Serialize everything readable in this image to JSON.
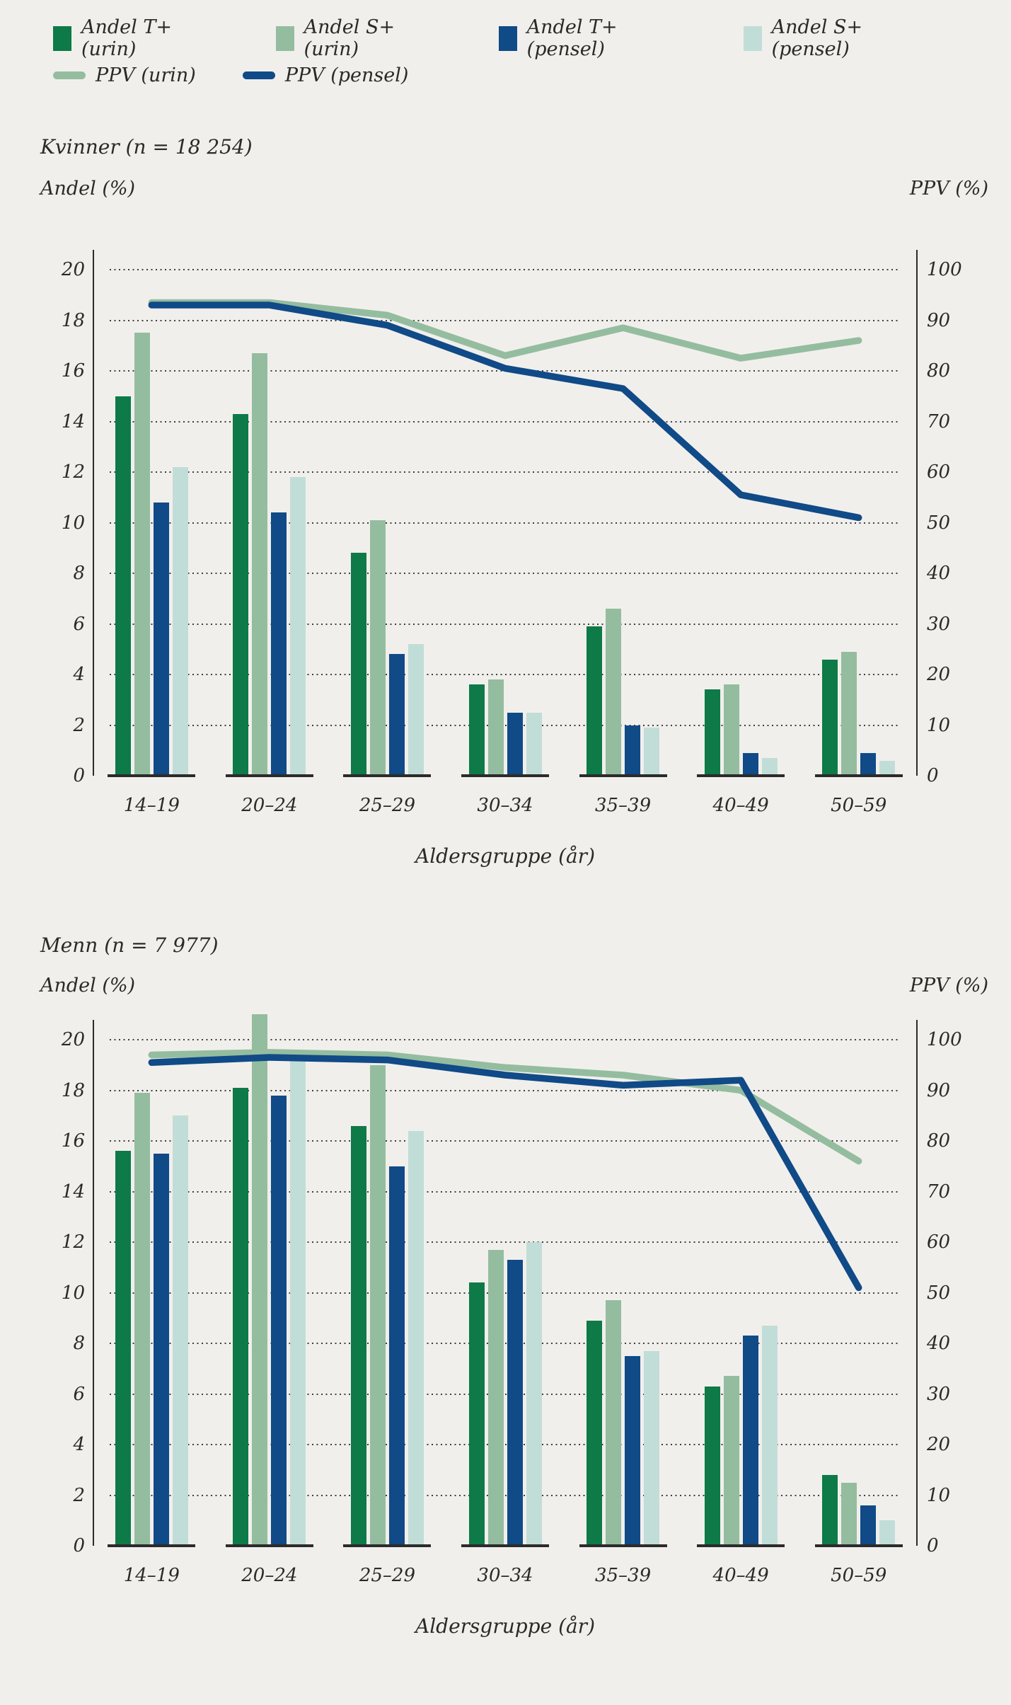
{
  "legend": {
    "bar_series": [
      {
        "label": "Andel T+ (urin)",
        "color": "#0d7a47"
      },
      {
        "label": "Andel S+ (urin)",
        "color": "#94bd9f"
      },
      {
        "label": "Andel T+ (pensel)",
        "color": "#104a87"
      },
      {
        "label": "Andel S+ (pensel)",
        "color": "#c1ddd8"
      }
    ],
    "line_series": [
      {
        "label": "PPV (urin)",
        "color": "#94bd9f"
      },
      {
        "label": "PPV (pensel)",
        "color": "#104a87"
      }
    ]
  },
  "axes": {
    "left_label": "Andel (%)",
    "right_label": "PPV (%)",
    "left_ticks": [
      20,
      18,
      16,
      14,
      12,
      10,
      8,
      6,
      4,
      2
    ],
    "right_ticks": [
      100,
      90,
      80,
      70,
      60,
      50,
      40,
      30,
      20,
      10
    ],
    "zero": "0"
  },
  "x_axis": {
    "title": "Aldersgruppe (år)"
  },
  "chart_data": [
    {
      "type": "bar",
      "title": "Kvinner (n = 18 254)",
      "categories": [
        "14–19",
        "20–24",
        "25–29",
        "30–34",
        "35–39",
        "40–49",
        "50–59"
      ],
      "left_axis": {
        "label": "Andel (%)",
        "range": [
          0,
          20
        ]
      },
      "right_axis": {
        "label": "PPV (%)",
        "range": [
          0,
          100
        ]
      },
      "grid": "dotted horizontal",
      "legend_position": "top",
      "series": [
        {
          "name": "Andel T+ (urin)",
          "type": "bar",
          "axis": "left",
          "color": "#0d7a47",
          "values": [
            15.0,
            14.3,
            8.8,
            3.6,
            5.9,
            3.4,
            4.6
          ]
        },
        {
          "name": "Andel S+ (urin)",
          "type": "bar",
          "axis": "left",
          "color": "#94bd9f",
          "values": [
            17.5,
            16.7,
            10.1,
            3.8,
            6.6,
            3.6,
            4.9
          ]
        },
        {
          "name": "Andel T+ (pensel)",
          "type": "bar",
          "axis": "left",
          "color": "#104a87",
          "values": [
            10.8,
            10.4,
            4.8,
            2.5,
            2.0,
            0.9,
            0.9
          ]
        },
        {
          "name": "Andel S+ (pensel)",
          "type": "bar",
          "axis": "left",
          "color": "#c1ddd8",
          "values": [
            12.2,
            11.8,
            5.2,
            2.5,
            1.9,
            0.7,
            0.6
          ]
        },
        {
          "name": "PPV (urin)",
          "type": "line",
          "axis": "right",
          "color": "#94bd9f",
          "values": [
            93.5,
            93.5,
            91.0,
            83.0,
            88.5,
            82.5,
            86.0
          ]
        },
        {
          "name": "PPV (pensel)",
          "type": "line",
          "axis": "right",
          "color": "#104a87",
          "values": [
            93.0,
            93.0,
            89.0,
            80.5,
            76.5,
            55.5,
            51.0
          ]
        }
      ]
    },
    {
      "type": "bar",
      "title": "Menn (n = 7 977)",
      "categories": [
        "14–19",
        "20–24",
        "25–29",
        "30–34",
        "35–39",
        "40–49",
        "50–59"
      ],
      "left_axis": {
        "label": "Andel (%)",
        "range": [
          0,
          20
        ]
      },
      "right_axis": {
        "label": "PPV (%)",
        "range": [
          0,
          100
        ]
      },
      "grid": "dotted horizontal",
      "legend_position": "top",
      "series": [
        {
          "name": "Andel T+ (urin)",
          "type": "bar",
          "axis": "left",
          "color": "#0d7a47",
          "values": [
            15.6,
            18.1,
            16.6,
            10.4,
            8.9,
            6.3,
            2.8
          ]
        },
        {
          "name": "Andel S+ (urin)",
          "type": "bar",
          "axis": "left",
          "color": "#94bd9f",
          "values": [
            17.9,
            21.0,
            19.0,
            11.7,
            9.7,
            6.7,
            2.5
          ]
        },
        {
          "name": "Andel T+ (pensel)",
          "type": "bar",
          "axis": "left",
          "color": "#104a87",
          "values": [
            15.5,
            17.8,
            15.0,
            11.3,
            7.5,
            8.3,
            1.6
          ]
        },
        {
          "name": "Andel S+ (pensel)",
          "type": "bar",
          "axis": "left",
          "color": "#c1ddd8",
          "values": [
            17.0,
            19.5,
            16.4,
            12.0,
            7.7,
            8.7,
            1.0
          ]
        },
        {
          "name": "PPV (urin)",
          "type": "line",
          "axis": "right",
          "color": "#94bd9f",
          "values": [
            97.0,
            97.5,
            97.0,
            94.5,
            93.0,
            90.0,
            76.0
          ]
        },
        {
          "name": "PPV (pensel)",
          "type": "line",
          "axis": "right",
          "color": "#104a87",
          "values": [
            95.5,
            96.5,
            96.0,
            93.0,
            91.0,
            92.0,
            51.0
          ]
        }
      ]
    }
  ]
}
